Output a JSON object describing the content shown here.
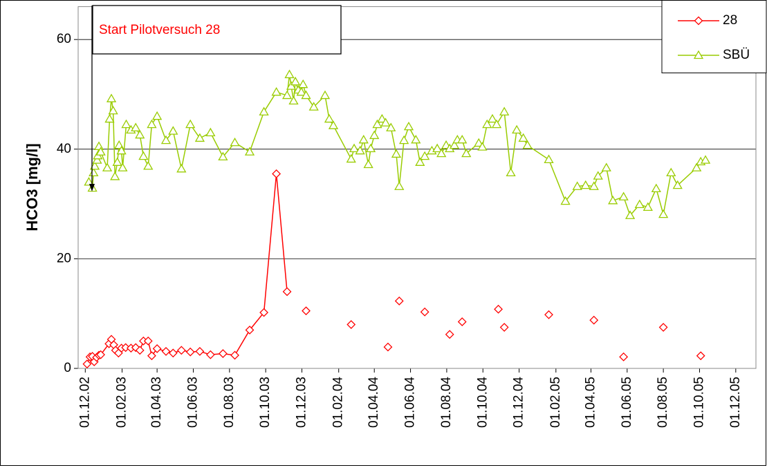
{
  "chart_data": {
    "type": "line",
    "ylabel": "HCO3 [mg/l]",
    "annotation": "Start Pilotversuch 28",
    "legend": "upper right",
    "grid": true,
    "ylim": [
      0,
      66
    ],
    "yticks": [
      0,
      20,
      40,
      60
    ],
    "xlim": [
      "2002-11-19",
      "2006-01-04"
    ],
    "xticks": [
      {
        "value": "2002-12-01",
        "label": "01.12.02"
      },
      {
        "value": "2003-02-01",
        "label": "01.02.03"
      },
      {
        "value": "2003-04-01",
        "label": "01.04.03"
      },
      {
        "value": "2003-06-01",
        "label": "01.06.03"
      },
      {
        "value": "2003-08-01",
        "label": "01.08.03"
      },
      {
        "value": "2003-10-01",
        "label": "01.10.03"
      },
      {
        "value": "2003-12-01",
        "label": "01.12.03"
      },
      {
        "value": "2004-02-01",
        "label": "01.02.04"
      },
      {
        "value": "2004-04-01",
        "label": "01.04.04"
      },
      {
        "value": "2004-06-01",
        "label": "01.06.04"
      },
      {
        "value": "2004-08-01",
        "label": "01.08.04"
      },
      {
        "value": "2004-10-01",
        "label": "01.10.04"
      },
      {
        "value": "2004-12-01",
        "label": "01.12.04"
      },
      {
        "value": "2005-02-01",
        "label": "01.02.05"
      },
      {
        "value": "2005-04-01",
        "label": "01.04.05"
      },
      {
        "value": "2005-06-01",
        "label": "01.06.05"
      },
      {
        "value": "2005-08-01",
        "label": "01.08.05"
      },
      {
        "value": "2005-10-01",
        "label": "01.10.05"
      },
      {
        "value": "2005-12-01",
        "label": "01.12.05"
      }
    ],
    "series": [
      {
        "name": "28",
        "color": "#ff0000",
        "marker": "diamond",
        "x": [
          "2002-12-04",
          "2002-12-09",
          "2002-12-13",
          "2002-12-16",
          "2002-12-20",
          "2002-12-24",
          "2002-12-27",
          "2003-01-10",
          "2003-01-14",
          "2003-01-18",
          "2003-01-21",
          "2003-01-26",
          "2003-01-31",
          "2003-02-07",
          "2003-02-16",
          "2003-02-24",
          "2003-03-03",
          "2003-03-09",
          "2003-03-17",
          "2003-03-23",
          "2003-04-01",
          "2003-04-16",
          "2003-04-28",
          "2003-05-12",
          "2003-05-27",
          "2003-06-12",
          "2003-06-30",
          "2003-07-21",
          "2003-08-10",
          "2003-09-04",
          "2003-09-28",
          "2003-10-19",
          "2003-11-06",
          null,
          "2003-12-08",
          null,
          "2004-02-22",
          null,
          "2004-04-24",
          null,
          "2004-05-13",
          null,
          "2004-06-25",
          null,
          "2004-08-06",
          null,
          "2004-08-27",
          null,
          "2004-10-27",
          null,
          "2004-11-06",
          null,
          "2005-01-20",
          null,
          "2005-04-06",
          null,
          "2005-05-26",
          null,
          "2005-08-01",
          null,
          "2005-10-03"
        ],
        "values": [
          0.8,
          2.1,
          2.2,
          1.2,
          2.0,
          2.4,
          2.5,
          4.5,
          5.3,
          4.3,
          3.3,
          2.8,
          3.7,
          3.8,
          3.7,
          3.8,
          3.3,
          5.0,
          5.0,
          2.3,
          3.6,
          3.1,
          2.8,
          3.3,
          3.0,
          3.1,
          2.5,
          2.7,
          2.4,
          7.0,
          10.2,
          35.5,
          14.0,
          null,
          10.5,
          null,
          8.0,
          null,
          3.9,
          null,
          12.3,
          null,
          10.3,
          null,
          6.2,
          null,
          8.5,
          null,
          10.8,
          null,
          7.5,
          null,
          9.8,
          null,
          8.8,
          null,
          2.1,
          null,
          7.5,
          null,
          2.3
        ]
      },
      {
        "name": "SBÜ",
        "color": "#99cc00",
        "marker": "triangle",
        "x": [
          "2002-12-07",
          "2002-12-13",
          "2002-12-15",
          "2002-12-17",
          "2002-12-21",
          "2002-12-22",
          "2002-12-24",
          "2002-12-27",
          "2003-01-07",
          "2003-01-11",
          "2003-01-14",
          "2003-01-17",
          "2003-01-20",
          "2003-01-24",
          "2003-01-27",
          "2003-01-31",
          "2003-02-02",
          "2003-02-08",
          "2003-02-16",
          "2003-02-24",
          "2003-03-03",
          "2003-03-09",
          "2003-03-17",
          "2003-03-23",
          "2003-04-01",
          "2003-04-16",
          "2003-04-28",
          "2003-05-12",
          "2003-05-27",
          "2003-06-12",
          "2003-06-30",
          "2003-07-21",
          "2003-08-10",
          "2003-09-04",
          "2003-09-28",
          "2003-10-19",
          "2003-11-06",
          "2003-11-10",
          "2003-11-13",
          "2003-11-17",
          "2003-11-20",
          "2003-11-25",
          "2003-11-30",
          "2003-12-03",
          "2003-12-08",
          "2003-12-21",
          "2004-01-09",
          "2004-01-16",
          "2004-01-23",
          "2004-02-22",
          "2004-02-27",
          "2004-03-08",
          "2004-03-14",
          "2004-03-22",
          "2004-03-26",
          "2004-04-01",
          "2004-04-06",
          "2004-04-14",
          "2004-04-20",
          "2004-04-29",
          "2004-05-08",
          "2004-05-13",
          "2004-05-21",
          "2004-05-29",
          "2004-06-10",
          "2004-06-17",
          "2004-06-25",
          "2004-07-07",
          "2004-07-16",
          "2004-07-23",
          "2004-07-31",
          "2004-08-06",
          "2004-08-14",
          "2004-08-19",
          "2004-08-27",
          "2004-09-03",
          "2004-09-24",
          "2004-09-30",
          "2004-10-08",
          "2004-10-17",
          "2004-10-24",
          "2004-11-06",
          "2004-11-17",
          "2004-11-27",
          "2004-12-08",
          "2004-12-15",
          "2005-01-20",
          "2005-02-17",
          "2005-03-09",
          "2005-03-23",
          "2005-04-06",
          "2005-04-13",
          "2005-04-27",
          "2005-05-08",
          "2005-05-26",
          "2005-06-06",
          "2005-06-22",
          "2005-07-06",
          "2005-07-20",
          "2005-08-01",
          "2005-08-14",
          "2005-08-25",
          "2005-09-26",
          "2005-10-03",
          "2005-10-11"
        ],
        "values": [
          34.0,
          32.9,
          35.7,
          36.9,
          38.0,
          38.8,
          40.5,
          39.5,
          36.6,
          45.5,
          49.2,
          47.0,
          35.0,
          37.6,
          40.7,
          39.7,
          36.6,
          44.5,
          43.5,
          43.9,
          42.6,
          38.7,
          36.9,
          44.5,
          46.0,
          41.6,
          43.3,
          36.4,
          44.5,
          42.0,
          43.0,
          38.6,
          41.2,
          39.5,
          46.8,
          50.4,
          49.8,
          53.6,
          51.5,
          48.8,
          52.3,
          50.8,
          50.4,
          51.8,
          49.8,
          47.7,
          49.8,
          45.5,
          44.3,
          38.2,
          40.1,
          39.7,
          41.7,
          37.2,
          40.1,
          42.5,
          44.5,
          45.5,
          44.8,
          43.9,
          39.1,
          33.2,
          41.6,
          44.1,
          41.7,
          37.6,
          38.7,
          39.7,
          40.1,
          39.2,
          40.7,
          40.1,
          40.7,
          41.7,
          41.7,
          39.2,
          41.1,
          40.4,
          44.5,
          45.5,
          44.5,
          46.8,
          35.7,
          43.5,
          42.0,
          40.7,
          38.1,
          30.5,
          33.2,
          33.4,
          33.2,
          35.1,
          36.6,
          30.6,
          31.3,
          27.9,
          29.9,
          29.4,
          32.8,
          28.1,
          35.7,
          33.4,
          36.6,
          37.7,
          38.0
        ]
      }
    ]
  }
}
